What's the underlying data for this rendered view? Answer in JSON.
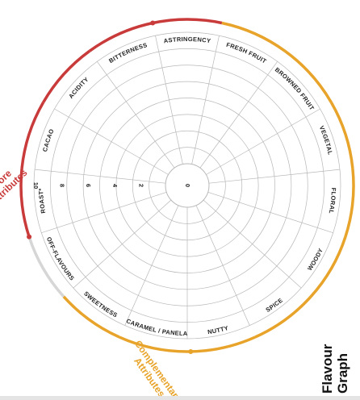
{
  "title_lines": [
    "Flavour",
    "Graph"
  ],
  "colors": {
    "core": "#c93b3b",
    "complementary": "#e8a42a",
    "neutral": "#d6d6d6",
    "grid": "#b8b8b8",
    "text": "#222222"
  },
  "chart_data": {
    "type": "radar",
    "scale": {
      "min": 0,
      "max": 10,
      "ticks": [
        "0",
        "2",
        "4",
        "6",
        "8",
        "10"
      ]
    },
    "categories": [
      "ASTRINGENCY",
      "FRESH FRUIT",
      "BROWNED FRUIT",
      "VEGETAL",
      "FLORAL",
      "WOODY",
      "SPICE",
      "NUTTY",
      "CARAMEL / PANELA",
      "SWEETNESS",
      "OFF-FLAVOURS",
      "ROAST*",
      "CACAO",
      "ACIDITY",
      "BITTERNESS"
    ],
    "groups": [
      {
        "name": "Core Attributes",
        "lines": [
          "Core",
          "Attributes"
        ],
        "color": "core",
        "members": [
          "ROAST*",
          "CACAO",
          "ACIDITY",
          "BITTERNESS",
          "ASTRINGENCY"
        ]
      },
      {
        "name": "Complementary Attributes",
        "lines": [
          "Complementary",
          "Attributes"
        ],
        "color": "complementary",
        "members": [
          "FRESH FRUIT",
          "BROWNED FRUIT",
          "VEGETAL",
          "FLORAL",
          "WOODY",
          "SPICE",
          "NUTTY",
          "CARAMEL / PANELA",
          "SWEETNESS"
        ]
      },
      {
        "name": "",
        "color": "neutral",
        "members": [
          "OFF-FLAVOURS"
        ]
      }
    ],
    "series": [],
    "grid": true
  }
}
